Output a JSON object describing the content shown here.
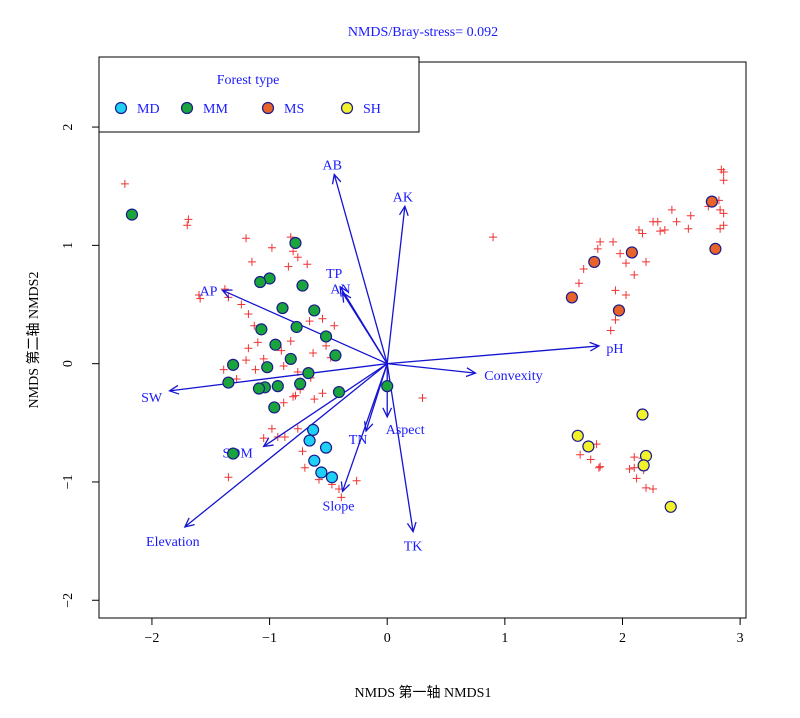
{
  "chart_data": {
    "type": "scatter",
    "title": "NMDS/Bray-stress= 0.092",
    "xlabel": "NMDS 第一轴 NMDS1",
    "ylabel": "NMDS 第二轴 NMDS2",
    "xlim": [
      -2.45,
      3.05
    ],
    "ylim": [
      -2.15,
      2.55
    ],
    "x_ticks": [
      -2,
      -1,
      0,
      1,
      2,
      3
    ],
    "y_ticks": [
      -2,
      -1,
      0,
      1,
      2
    ],
    "legend": {
      "title": "Forest type",
      "placement": "top-left",
      "entries": [
        {
          "label": "MD",
          "color": "#1fd0f5"
        },
        {
          "label": "MM",
          "color": "#1aa53c"
        },
        {
          "label": "MS",
          "color": "#e8632a"
        },
        {
          "label": "SH",
          "color": "#f2f22a"
        }
      ]
    },
    "colors": {
      "text": "#1a1aff",
      "arrow": "#1414d2",
      "cross": "#ee3333",
      "outline": "#1a1a8c",
      "axis": "#000000"
    },
    "series": [
      {
        "name": "MD",
        "color": "#1fd0f5",
        "points": [
          [
            -0.63,
            -0.56
          ],
          [
            -0.66,
            -0.65
          ],
          [
            -0.52,
            -0.71
          ],
          [
            -0.62,
            -0.82
          ],
          [
            -0.56,
            -0.92
          ],
          [
            -0.47,
            -0.96
          ]
        ]
      },
      {
        "name": "MM",
        "color": "#1aa53c",
        "points": [
          [
            -2.17,
            1.26
          ],
          [
            -0.78,
            1.02
          ],
          [
            -1.0,
            0.72
          ],
          [
            -1.08,
            0.69
          ],
          [
            -0.72,
            0.66
          ],
          [
            -0.89,
            0.47
          ],
          [
            -0.62,
            0.45
          ],
          [
            -1.07,
            0.29
          ],
          [
            -0.77,
            0.31
          ],
          [
            -0.52,
            0.23
          ],
          [
            -0.95,
            0.16
          ],
          [
            -0.82,
            0.04
          ],
          [
            -0.44,
            0.07
          ],
          [
            -1.31,
            -0.01
          ],
          [
            -1.02,
            -0.03
          ],
          [
            -0.67,
            -0.08
          ],
          [
            -1.35,
            -0.16
          ],
          [
            -0.74,
            -0.17
          ],
          [
            -1.04,
            -0.2
          ],
          [
            -0.93,
            -0.19
          ],
          [
            -1.09,
            -0.21
          ],
          [
            -0.41,
            -0.24
          ],
          [
            0.0,
            -0.19
          ],
          [
            -0.96,
            -0.37
          ],
          [
            -1.31,
            -0.76
          ]
        ]
      },
      {
        "name": "MS",
        "color": "#e8632a",
        "points": [
          [
            2.76,
            1.37
          ],
          [
            2.08,
            0.94
          ],
          [
            2.79,
            0.97
          ],
          [
            1.76,
            0.86
          ],
          [
            1.57,
            0.56
          ],
          [
            1.97,
            0.45
          ]
        ]
      },
      {
        "name": "SH",
        "color": "#f2f22a",
        "points": [
          [
            2.17,
            -0.43
          ],
          [
            1.62,
            -0.61
          ],
          [
            1.71,
            -0.7
          ],
          [
            2.2,
            -0.78
          ],
          [
            2.18,
            -0.86
          ],
          [
            2.41,
            -1.21
          ]
        ]
      }
    ],
    "species": [
      [
        -2.23,
        1.52
      ],
      [
        -1.69,
        1.22
      ],
      [
        -1.7,
        1.17
      ],
      [
        -1.6,
        0.58
      ],
      [
        -1.59,
        0.55
      ],
      [
        -1.38,
        0.63
      ],
      [
        -1.35,
        0.56
      ],
      [
        -1.24,
        0.5
      ],
      [
        -1.18,
        0.42
      ],
      [
        -1.13,
        0.32
      ],
      [
        -1.18,
        0.13
      ],
      [
        -1.2,
        0.03
      ],
      [
        -1.1,
        0.18
      ],
      [
        -1.05,
        0.04
      ],
      [
        -1.12,
        -0.05
      ],
      [
        -1.39,
        -0.05
      ],
      [
        -1.28,
        -0.13
      ],
      [
        -0.9,
        0.11
      ],
      [
        -0.82,
        0.19
      ],
      [
        -0.88,
        -0.02
      ],
      [
        -0.76,
        -0.07
      ],
      [
        -0.78,
        -0.27
      ],
      [
        -0.88,
        -0.33
      ],
      [
        -0.74,
        -0.22
      ],
      [
        -0.62,
        -0.3
      ],
      [
        -0.55,
        -0.25
      ],
      [
        -0.65,
        -0.12
      ],
      [
        -0.63,
        0.09
      ],
      [
        -0.52,
        0.15
      ],
      [
        -0.48,
        0.05
      ],
      [
        -0.55,
        0.38
      ],
      [
        -0.45,
        0.32
      ],
      [
        -0.66,
        0.36
      ],
      [
        -1.15,
        0.86
      ],
      [
        -0.98,
        0.98
      ],
      [
        -1.2,
        1.06
      ],
      [
        -0.84,
        0.82
      ],
      [
        -0.8,
        0.95
      ],
      [
        -0.76,
        0.9
      ],
      [
        -0.68,
        0.84
      ],
      [
        -0.82,
        1.07
      ],
      [
        -1.35,
        -0.96
      ],
      [
        -0.87,
        -0.62
      ],
      [
        -0.93,
        -0.62
      ],
      [
        -0.98,
        -0.55
      ],
      [
        -0.76,
        -0.55
      ],
      [
        -0.72,
        -0.74
      ],
      [
        -0.7,
        -0.88
      ],
      [
        -0.58,
        -0.98
      ],
      [
        -0.47,
        -1.02
      ],
      [
        -0.41,
        -1.06
      ],
      [
        -0.26,
        -0.99
      ],
      [
        -0.39,
        -1.13
      ],
      [
        0.3,
        -0.29
      ],
      [
        0.9,
        1.07
      ],
      [
        1.63,
        0.68
      ],
      [
        1.67,
        0.8
      ],
      [
        1.79,
        0.97
      ],
      [
        1.81,
        1.03
      ],
      [
        1.92,
        1.03
      ],
      [
        1.98,
        0.93
      ],
      [
        2.03,
        0.85
      ],
      [
        2.1,
        0.75
      ],
      [
        1.94,
        0.62
      ],
      [
        2.03,
        0.58
      ],
      [
        1.94,
        0.37
      ],
      [
        1.9,
        0.28
      ],
      [
        2.2,
        0.86
      ],
      [
        2.17,
        1.1
      ],
      [
        2.26,
        1.2
      ],
      [
        2.3,
        1.2
      ],
      [
        2.14,
        1.13
      ],
      [
        2.42,
        1.3
      ],
      [
        2.46,
        1.2
      ],
      [
        2.36,
        1.13
      ],
      [
        2.32,
        1.12
      ],
      [
        2.56,
        1.14
      ],
      [
        2.58,
        1.25
      ],
      [
        2.73,
        1.33
      ],
      [
        2.84,
        1.64
      ],
      [
        2.86,
        1.62
      ],
      [
        2.86,
        1.55
      ],
      [
        2.82,
        1.38
      ],
      [
        2.83,
        1.3
      ],
      [
        2.86,
        1.27
      ],
      [
        2.86,
        1.17
      ],
      [
        2.83,
        1.14
      ],
      [
        1.78,
        -0.68
      ],
      [
        1.73,
        -0.81
      ],
      [
        1.8,
        -0.88
      ],
      [
        1.81,
        -0.87
      ],
      [
        1.64,
        -0.77
      ],
      [
        2.06,
        -0.89
      ],
      [
        2.1,
        -0.88
      ],
      [
        2.18,
        -0.9
      ],
      [
        2.1,
        -0.79
      ],
      [
        2.17,
        -0.8
      ],
      [
        2.12,
        -0.97
      ],
      [
        2.2,
        -1.05
      ],
      [
        2.26,
        -1.06
      ],
      [
        -1.05,
        -0.63
      ],
      [
        -0.8,
        -0.28
      ]
    ],
    "vectors": [
      {
        "label": "AB",
        "x": -0.45,
        "y": 1.6
      },
      {
        "label": "AK",
        "x": 0.15,
        "y": 1.33
      },
      {
        "label": "TP",
        "x": -0.4,
        "y": 0.65
      },
      {
        "label": "AN",
        "x": -0.38,
        "y": 0.6
      },
      {
        "label": "AP",
        "x": -1.4,
        "y": 0.62
      },
      {
        "label": "pH",
        "x": 1.8,
        "y": 0.15
      },
      {
        "label": "Convexity",
        "x": 0.75,
        "y": -0.08
      },
      {
        "label": "SW",
        "x": -1.85,
        "y": -0.23
      },
      {
        "label": "Aspect",
        "x": 0.0,
        "y": -0.45
      },
      {
        "label": "TN",
        "x": -0.18,
        "y": -0.57
      },
      {
        "label": "SOM",
        "x": -1.05,
        "y": -0.7
      },
      {
        "label": "Slope",
        "x": -0.38,
        "y": -1.08
      },
      {
        "label": "TK",
        "x": 0.22,
        "y": -1.42
      },
      {
        "label": "Elevation",
        "x": -1.72,
        "y": -1.38
      }
    ]
  }
}
